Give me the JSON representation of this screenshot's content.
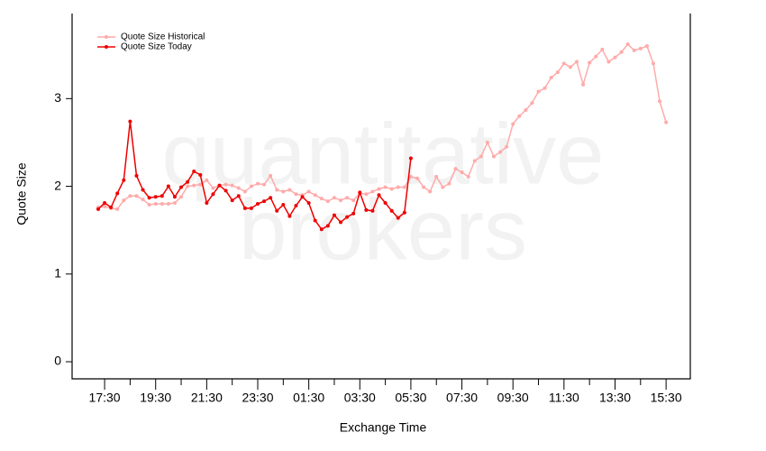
{
  "chart_data": {
    "type": "line",
    "watermark": [
      "quantitative",
      "brokers"
    ],
    "xlabel": "Exchange Time",
    "ylabel": "Quote Size",
    "categories": [
      null,
      "17:30",
      null,
      null,
      null,
      null,
      null,
      null,
      null,
      "19:30",
      null,
      null,
      null,
      null,
      null,
      null,
      null,
      "21:30",
      null,
      null,
      null,
      null,
      null,
      null,
      null,
      "23:30",
      null,
      null,
      null,
      null,
      null,
      null,
      null,
      "01:30",
      null,
      null,
      null,
      null,
      null,
      null,
      null,
      "03:30",
      null,
      null,
      null,
      null,
      null,
      null,
      null,
      "05:30",
      null,
      null,
      null,
      null,
      null,
      null,
      null,
      "07:30",
      null,
      null,
      null,
      null,
      null,
      null,
      null,
      "09:30",
      null,
      null,
      null,
      null,
      null,
      null,
      null,
      "11:30",
      null,
      null,
      null,
      null,
      null,
      null,
      null,
      "13:30",
      null,
      null,
      null,
      null,
      null,
      null,
      null,
      "15:30"
    ],
    "series": [
      {
        "name": "Quote Size Historical",
        "color": "#ffaaaa",
        "values": [
          1.76,
          1.77,
          1.75,
          1.74,
          1.84,
          1.89,
          1.89,
          1.85,
          1.79,
          1.8,
          1.8,
          1.8,
          1.81,
          1.88,
          2.0,
          2.01,
          2.02,
          2.07,
          1.98,
          2.01,
          2.02,
          2.01,
          1.98,
          1.94,
          2.0,
          2.03,
          2.02,
          2.12,
          1.96,
          1.94,
          1.96,
          1.91,
          1.9,
          1.94,
          1.9,
          1.86,
          1.83,
          1.87,
          1.84,
          1.87,
          1.84,
          1.92,
          1.91,
          1.94,
          1.97,
          1.99,
          1.97,
          1.99,
          1.99,
          2.11,
          2.09,
          1.99,
          1.94,
          2.11,
          1.99,
          2.03,
          2.2,
          2.16,
          2.11,
          2.29,
          2.34,
          2.5,
          2.34,
          2.39,
          2.45,
          2.71,
          2.8,
          2.87,
          2.95,
          3.08,
          3.12,
          3.24,
          3.3,
          3.4,
          3.36,
          3.42,
          3.16,
          3.41,
          3.48,
          3.56,
          3.42,
          3.47,
          3.53,
          3.62,
          3.55,
          3.57,
          3.6,
          3.4,
          2.97,
          2.73
        ]
      },
      {
        "name": "Quote Size Today",
        "color": "#ee0000",
        "values": [
          1.74,
          1.81,
          1.76,
          1.92,
          2.07,
          2.74,
          2.12,
          1.96,
          1.87,
          1.88,
          1.89,
          2.0,
          1.88,
          1.99,
          2.05,
          2.17,
          2.13,
          1.81,
          1.91,
          2.01,
          1.95,
          1.84,
          1.89,
          1.75,
          1.75,
          1.8,
          1.83,
          1.87,
          1.72,
          1.79,
          1.66,
          1.78,
          1.88,
          1.81,
          1.61,
          1.51,
          1.55,
          1.67,
          1.59,
          1.65,
          1.69,
          1.93,
          1.73,
          1.72,
          1.9,
          1.81,
          1.72,
          1.64,
          1.7,
          2.32,
          null,
          null,
          null,
          null,
          null,
          null,
          null,
          null,
          null,
          null,
          null,
          null,
          null,
          null,
          null,
          null,
          null,
          null,
          null,
          null,
          null,
          null,
          null,
          null,
          null,
          null,
          null,
          null,
          null,
          null,
          null,
          null,
          null,
          null,
          null,
          null,
          null,
          null,
          null,
          null
        ]
      }
    ],
    "ylim": [
      -0.195,
      3.97
    ],
    "yticks": [
      0,
      1,
      2,
      3
    ],
    "grid": false,
    "legend": "top-left"
  }
}
